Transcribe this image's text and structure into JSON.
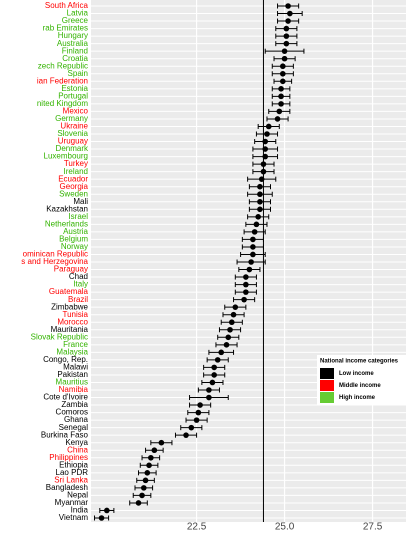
{
  "chart_data": {
    "type": "dotplot",
    "categories": [
      "South Africa",
      "Latvia",
      "Greece",
      "rab Emirates",
      "Hungary",
      "Australia",
      "Finland",
      "Croatia",
      "zech Republic",
      "Spain",
      "ian Federation",
      "Estonia",
      "Portugal",
      "nited Kingdom",
      "Mexico",
      "Germany",
      "Ukraine",
      "Slovenia",
      "Uruguay",
      "Denmark",
      "Luxembourg",
      "Turkey",
      "Ireland",
      "Ecuador",
      "Georgia",
      "Sweden",
      "Mali",
      "Kazakhstan",
      "Israel",
      "Netherlands",
      "Austria",
      "Belgium",
      "Norway",
      "ominican Republic",
      "s and Herzegovina",
      "Paraguay",
      "Chad",
      "Italy",
      "Guatemala",
      "Brazil",
      "Zimbabwe",
      "Tunisia",
      "Morocco",
      "Mauritania",
      "Slovak Republic",
      "France",
      "Malaysia",
      "Congo, Rep.",
      "Malawi",
      "Pakistan",
      "Mauritius",
      "Namibia",
      "Cote d'Ivoire",
      "Zambia",
      "Comoros",
      "Ghana",
      "Senegal",
      "Burkina Faso",
      "Kenya",
      "China",
      "Philippines",
      "Ethiopia",
      "Lao PDR",
      "Sri Lanka",
      "Bangladesh",
      "Nepal",
      "Myanmar",
      "India",
      "Vietnam"
    ],
    "values": [
      25.1,
      25.15,
      25.1,
      25.05,
      25.05,
      25.05,
      25.0,
      25.0,
      24.95,
      24.95,
      24.95,
      24.9,
      24.9,
      24.9,
      24.85,
      24.8,
      24.55,
      24.5,
      24.45,
      24.45,
      24.45,
      24.4,
      24.4,
      24.35,
      24.3,
      24.3,
      24.3,
      24.3,
      24.25,
      24.2,
      24.15,
      24.1,
      24.1,
      24.1,
      24.05,
      24.0,
      23.9,
      23.9,
      23.9,
      23.85,
      23.6,
      23.55,
      23.5,
      23.45,
      23.4,
      23.35,
      23.2,
      23.1,
      23.0,
      23.0,
      22.95,
      22.85,
      22.85,
      22.6,
      22.55,
      22.5,
      22.35,
      22.2,
      21.5,
      21.3,
      21.2,
      21.15,
      21.1,
      21.05,
      21.0,
      20.95,
      20.85,
      19.95,
      19.8
    ],
    "errors": [
      0.3,
      0.35,
      0.3,
      0.3,
      0.3,
      0.3,
      0.55,
      0.3,
      0.3,
      0.3,
      0.25,
      0.25,
      0.25,
      0.25,
      0.3,
      0.3,
      0.3,
      0.3,
      0.3,
      0.35,
      0.35,
      0.3,
      0.3,
      0.4,
      0.3,
      0.35,
      0.3,
      0.3,
      0.3,
      0.3,
      0.3,
      0.3,
      0.3,
      0.35,
      0.4,
      0.3,
      0.3,
      0.3,
      0.3,
      0.3,
      0.3,
      0.3,
      0.3,
      0.3,
      0.3,
      0.3,
      0.35,
      0.3,
      0.3,
      0.3,
      0.3,
      0.3,
      0.55,
      0.3,
      0.3,
      0.3,
      0.3,
      0.3,
      0.3,
      0.25,
      0.25,
      0.25,
      0.25,
      0.25,
      0.25,
      0.25,
      0.25,
      0.2,
      0.2
    ],
    "label_colors": [
      "#ff0000",
      "#33b300",
      "#33b300",
      "#33b300",
      "#33b300",
      "#33b300",
      "#33b300",
      "#33b300",
      "#33b300",
      "#33b300",
      "#ff0000",
      "#33b300",
      "#33b300",
      "#33b300",
      "#ff0000",
      "#33b300",
      "#ff0000",
      "#33b300",
      "#ff0000",
      "#33b300",
      "#33b300",
      "#ff0000",
      "#33b300",
      "#ff0000",
      "#ff0000",
      "#33b300",
      "#000000",
      "#000000",
      "#33b300",
      "#33b300",
      "#33b300",
      "#33b300",
      "#33b300",
      "#ff0000",
      "#ff0000",
      "#ff0000",
      "#000000",
      "#33b300",
      "#ff0000",
      "#ff0000",
      "#000000",
      "#ff0000",
      "#ff0000",
      "#000000",
      "#33b300",
      "#33b300",
      "#33b300",
      "#000000",
      "#000000",
      "#000000",
      "#33b300",
      "#ff0000",
      "#000000",
      "#000000",
      "#000000",
      "#000000",
      "#000000",
      "#000000",
      "#000000",
      "#ff0000",
      "#ff0000",
      "#000000",
      "#000000",
      "#ff0000",
      "#000000",
      "#000000",
      "#000000",
      "#000000",
      "#000000"
    ],
    "xlim": [
      19.5,
      28.45
    ],
    "xticks": [
      {
        "value": 22.5,
        "label": "22.5"
      },
      {
        "value": 25,
        "label": "25.0"
      },
      {
        "value": 27.5,
        "label": "27.5"
      }
    ],
    "reference_line": 24.4,
    "legend": {
      "title": "National income categories",
      "position": "bottom-right",
      "items": [
        {
          "name": "Low income",
          "color": "#000000"
        },
        {
          "name": "Middle income",
          "color": "#ff0000"
        },
        {
          "name": "High income",
          "color": "#66cc33"
        }
      ]
    }
  }
}
